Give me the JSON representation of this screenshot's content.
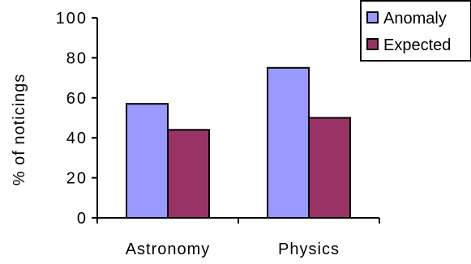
{
  "chart_data": {
    "type": "bar",
    "categories": [
      "Astronomy",
      "Physics"
    ],
    "series": [
      {
        "name": "Anomaly",
        "values": [
          57,
          75
        ],
        "color": "#9999ff"
      },
      {
        "name": "Expected",
        "values": [
          44,
          50
        ],
        "color": "#993366"
      }
    ],
    "title": "",
    "xlabel": "",
    "ylabel": "% of noticings",
    "ylim": [
      0,
      100
    ],
    "yticks": [
      "0",
      "20",
      "40",
      "60",
      "80",
      "100"
    ],
    "grid": false,
    "legend": "top-right"
  }
}
